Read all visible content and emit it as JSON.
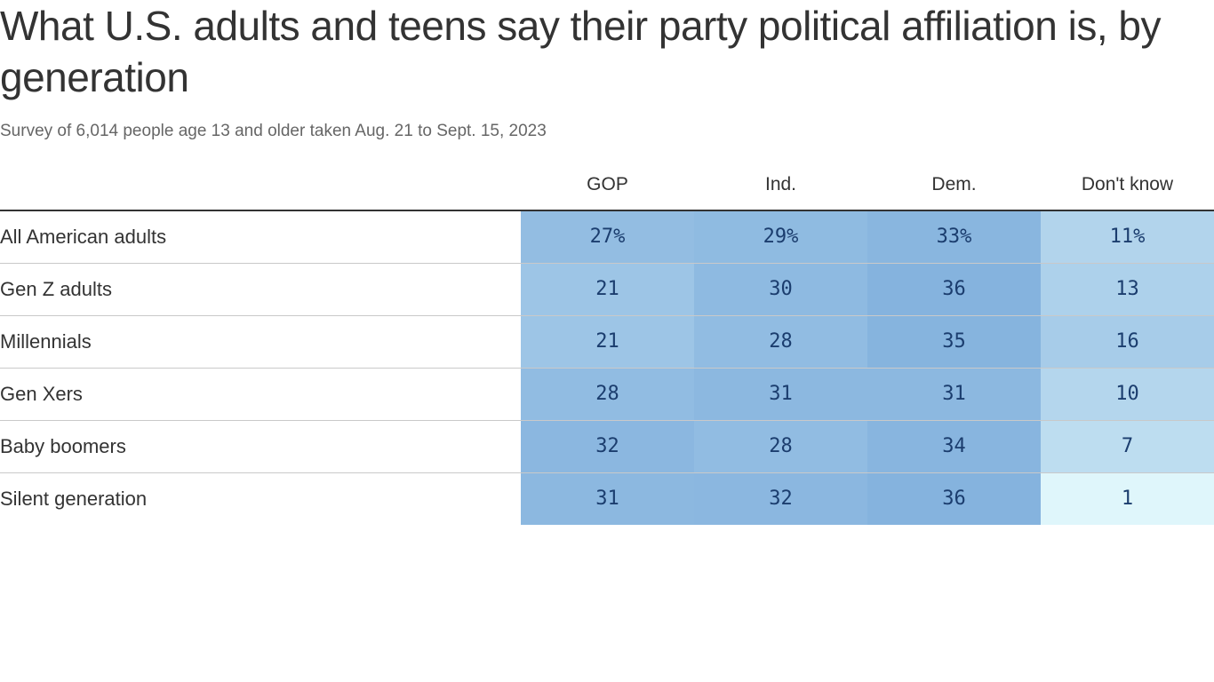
{
  "chart_data": {
    "type": "table",
    "title": "What U.S. adults and teens say their party political affiliation is, by generation",
    "subtitle": "Survey of 6,014 people age 13 and older taken Aug. 21 to Sept. 15, 2023",
    "columns": [
      "GOP",
      "Ind.",
      "Dem.",
      "Don't know"
    ],
    "rows": [
      {
        "label": "All American adults",
        "values": [
          27,
          29,
          33,
          11
        ],
        "display": [
          "27%",
          "29%",
          "33%",
          "11%"
        ]
      },
      {
        "label": "Gen Z adults",
        "values": [
          21,
          30,
          36,
          13
        ],
        "display": [
          "21",
          "30",
          "36",
          "13"
        ]
      },
      {
        "label": "Millennials",
        "values": [
          21,
          28,
          35,
          16
        ],
        "display": [
          "21",
          "28",
          "35",
          "16"
        ]
      },
      {
        "label": "Gen Xers",
        "values": [
          28,
          31,
          31,
          10
        ],
        "display": [
          "28",
          "31",
          "31",
          "10"
        ]
      },
      {
        "label": "Baby boomers",
        "values": [
          32,
          28,
          34,
          7
        ],
        "display": [
          "32",
          "28",
          "34",
          "7"
        ]
      },
      {
        "label": "Silent generation",
        "values": [
          31,
          32,
          36,
          1
        ],
        "display": [
          "31",
          "32",
          "36",
          "1"
        ]
      }
    ]
  },
  "colors": {
    "scale_low": "#dff6fb",
    "scale_high": "#85b3de",
    "value_text": "#1b3d6e"
  }
}
